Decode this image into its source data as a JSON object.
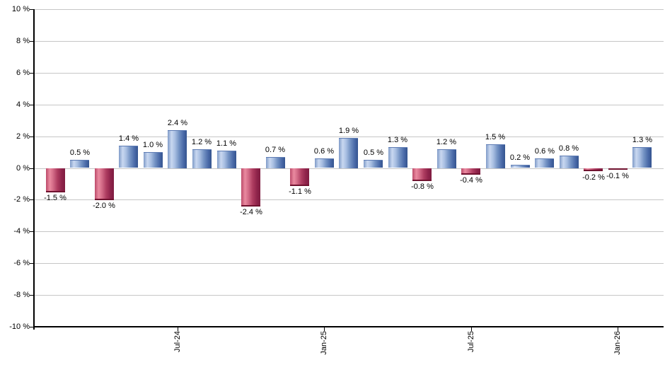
{
  "chart_data": {
    "type": "bar",
    "title": "",
    "xlabel": "",
    "ylabel": "",
    "ylim": [
      -10,
      10
    ],
    "y_tick_step": 2,
    "grid": true,
    "legend": "none",
    "background_color": "#ffffff",
    "gridline_color": "#c6c6c6",
    "axis_color": "#000000",
    "positive_color": "#6e8ec6",
    "negative_color": "#b03a5e",
    "y_tick_labels": [
      "10 %",
      "8 %",
      "6 %",
      "4 %",
      "2 %",
      "0 %",
      "-2 %",
      "-4 %",
      "-6 %",
      "-8 %",
      "-10 %"
    ],
    "values": [
      -1.5,
      0.5,
      -2.0,
      1.4,
      1.0,
      2.4,
      1.2,
      1.1,
      -2.4,
      0.7,
      -1.1,
      0.6,
      1.9,
      0.5,
      1.3,
      -0.8,
      1.2,
      -0.4,
      1.5,
      0.2,
      0.6,
      0.8,
      -0.2,
      -0.1,
      1.3
    ],
    "bar_value_labels": [
      "-1.5 %",
      "0.5 %",
      "-2.0 %",
      "1.4 %",
      "1.0 %",
      "2.4 %",
      "1.2 %",
      "1.1 %",
      "-2.4 %",
      "0.7 %",
      "-1.1 %",
      "0.6 %",
      "1.9 %",
      "0.5 %",
      "1.3 %",
      "-0.8 %",
      "1.2 %",
      "-0.4 %",
      "1.5 %",
      "0.2 %",
      "0.6 %",
      "0.8 %",
      "-0.2 %",
      "-0.1 %",
      "1.3 %"
    ],
    "x_tick_labels": [
      {
        "bar_index": 5,
        "label": "Jul-24"
      },
      {
        "bar_index": 11,
        "label": "Jan-25"
      },
      {
        "bar_index": 17,
        "label": "Jul-25"
      },
      {
        "bar_index": 23,
        "label": "Jan-26"
      }
    ]
  }
}
